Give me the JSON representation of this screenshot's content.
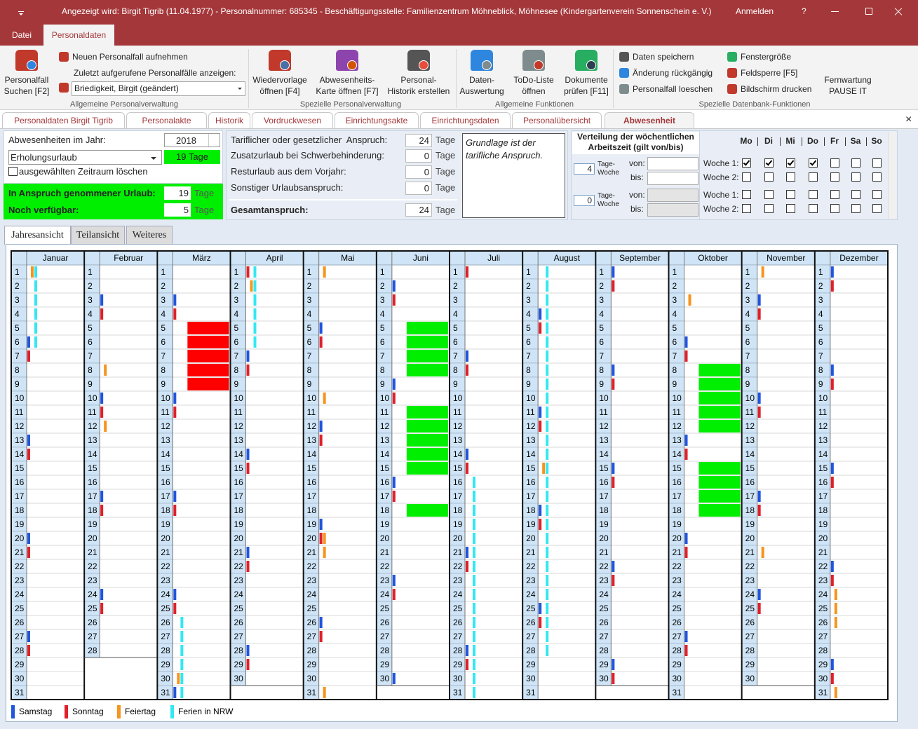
{
  "title_bar": {
    "title": "Angezeigt wird: Birgit Tigrib (11.04.1977) - Personalnummer: 685345 - Beschäftigungsstelle: Familienzentrum Möhneblick, Möhnesee (Kindergartenverein Sonnenschein e. V.)",
    "login": "Anmelden",
    "help": "?"
  },
  "menu": {
    "tabs": [
      "Datei",
      "Personaldaten"
    ],
    "active": 1
  },
  "ribbon": {
    "groups": [
      {
        "label": "Allgemeine Personalverwaltung",
        "buttons": [
          {
            "lines": [
              "Personalfall",
              "Suchen [F2]"
            ]
          }
        ],
        "items": [
          "Neuen Personalfall aufnehmen",
          "Zuletzt aufgerufene Personalfälle anzeigen:"
        ],
        "recent": "Briedigkeit, Birgit (geändert)"
      },
      {
        "label": "Spezielle Personalverwaltung",
        "buttons": [
          {
            "lines": [
              "Wiedervorlage",
              "öffnen [F4]"
            ]
          },
          {
            "lines": [
              "Abwesenheits-",
              "Karte öffnen [F7]"
            ]
          },
          {
            "lines": [
              "Personal-",
              "Historik erstellen"
            ]
          }
        ]
      },
      {
        "label": "Allgemeine Funktionen",
        "buttons": [
          {
            "lines": [
              "Daten-",
              "Auswertung"
            ]
          },
          {
            "lines": [
              "ToDo-Liste",
              "öffnen"
            ]
          },
          {
            "lines": [
              "Dokumente",
              "prüfen [F11]"
            ]
          }
        ]
      },
      {
        "label": "Spezielle Datenbank-Funktionen",
        "items": [
          "Daten speichern",
          "Änderung rückgängig",
          "Personalfall loeschen",
          "Fenstergröße",
          "Feldsperre [F5]",
          "Bildschirm drucken"
        ],
        "buttons": [
          {
            "lines": [
              "Fernwartung",
              "PAUSE IT"
            ]
          }
        ]
      }
    ]
  },
  "doc_tabs": {
    "tabs": [
      "Personaldaten Birgit Tigrib",
      "Personalakte",
      "Historik",
      "Vordruckwesen",
      "Einrichtungsakte",
      "Einrichtungsdaten",
      "Personalübersicht",
      "Abwesenheit"
    ],
    "active": 7,
    "close": "×"
  },
  "form": {
    "year_label": "Abwesenheiten im Jahr:",
    "year": 2018,
    "type": "Erholungsurlaub",
    "selected_total": "19 Tage",
    "delete_label": "ausgewählten Zeitraum löschen",
    "delete_checked": false,
    "taken_label": "In Anspruch genommener Urlaub:",
    "taken": 19,
    "available_label": "Noch verfügbar:",
    "available": 5,
    "unit": "Tage",
    "entitlements": [
      {
        "label": "Tariflicher oder gesetzlicher  Anspruch:",
        "value": 24
      },
      {
        "label": "Zusatzurlaub bei Schwerbehinderung:",
        "value": 0
      },
      {
        "label": "Resturlaub aus dem Vorjahr:",
        "value": 0
      },
      {
        "label": "Sonstiger Urlaubsanspruch:",
        "value": 0
      }
    ],
    "total_label": "Gesamtanspruch:",
    "total": 24,
    "note": "Grundlage ist der tarifliche Anspruch."
  },
  "worktime": {
    "title": "Verteilung der wöchentlichen Arbeitszeit (gilt von/bis)",
    "days": [
      "Mo",
      "Di",
      "Mi",
      "Do",
      "Fr",
      "Sa",
      "So"
    ],
    "days_label": "Tage-Woche",
    "from_label": "von:",
    "to_label": "bis:",
    "week_labels": [
      "Woche 1:",
      "Woche 2:"
    ],
    "blocks": [
      {
        "days_per_week": 4,
        "weeks": [
          [
            1,
            1,
            1,
            1,
            0,
            0,
            0
          ],
          [
            0,
            0,
            0,
            0,
            0,
            0,
            0
          ]
        ]
      },
      {
        "days_per_week": 0,
        "weeks": [
          [
            0,
            0,
            0,
            0,
            0,
            0,
            0
          ],
          [
            0,
            0,
            0,
            0,
            0,
            0,
            0
          ]
        ]
      }
    ]
  },
  "view_tabs": {
    "tabs": [
      "Jahresansicht",
      "Teilansicht",
      "Weiteres"
    ],
    "active": 0
  },
  "calendar": {
    "day_numbers": [
      1,
      2,
      3,
      4,
      5,
      6,
      7,
      8,
      9,
      10,
      11,
      12,
      13,
      14,
      15,
      16,
      17,
      18,
      19,
      20,
      21,
      22,
      23,
      24,
      25,
      26,
      27,
      28,
      29,
      30,
      31
    ],
    "legend": [
      {
        "label": "Samstag",
        "color": "#1f55e0"
      },
      {
        "label": "Sonntag",
        "color": "#e0202a"
      },
      {
        "label": "Feiertag",
        "color": "#f7941d"
      },
      {
        "label": "Ferien in NRW",
        "color": "#33e8f2"
      }
    ],
    "months": [
      {
        "name": "Januar",
        "days": 31,
        "holidays": [
          1
        ],
        "school_holidays": [
          [
            1,
            6
          ]
        ],
        "absence": [],
        "absence_color": "#00ee00"
      },
      {
        "name": "Februar",
        "days": 28,
        "holidays": [
          8,
          12
        ],
        "school_holidays": [],
        "absence": [],
        "absence_color": "#00ee00"
      },
      {
        "name": "März",
        "days": 31,
        "holidays": [
          30
        ],
        "school_holidays": [
          [
            26,
            31
          ]
        ],
        "absence": [
          [
            5,
            9
          ]
        ],
        "absence_color": "#ff0000"
      },
      {
        "name": "April",
        "days": 30,
        "holidays": [
          2
        ],
        "school_holidays": [
          [
            1,
            6
          ]
        ],
        "absence": [],
        "absence_color": "#00ee00"
      },
      {
        "name": "Mai",
        "days": 31,
        "holidays": [
          1,
          10,
          20,
          21,
          31
        ],
        "school_holidays": [],
        "absence": [],
        "absence_color": "#00ee00"
      },
      {
        "name": "Juni",
        "days": 30,
        "holidays": [],
        "school_holidays": [],
        "absence": [
          [
            5,
            8
          ],
          [
            11,
            15
          ],
          [
            18,
            18
          ]
        ],
        "absence_color": "#00ee00"
      },
      {
        "name": "Juli",
        "days": 31,
        "holidays": [],
        "school_holidays": [
          [
            16,
            31
          ]
        ],
        "absence": [],
        "absence_color": "#00ee00"
      },
      {
        "name": "August",
        "days": 31,
        "holidays": [
          15
        ],
        "school_holidays": [
          [
            1,
            28
          ]
        ],
        "absence": [],
        "absence_color": "#00ee00"
      },
      {
        "name": "September",
        "days": 30,
        "holidays": [],
        "school_holidays": [],
        "absence": [],
        "absence_color": "#00ee00"
      },
      {
        "name": "Oktober",
        "days": 31,
        "holidays": [
          3
        ],
        "school_holidays": [],
        "absence": [
          [
            8,
            12
          ],
          [
            15,
            18
          ]
        ],
        "absence_color": "#00ee00"
      },
      {
        "name": "November",
        "days": 30,
        "holidays": [
          1,
          21
        ],
        "school_holidays": [],
        "absence": [],
        "absence_color": "#00ee00"
      },
      {
        "name": "Dezember",
        "days": 31,
        "holidays": [
          24,
          25,
          26,
          31
        ],
        "school_holidays": [],
        "absence": [],
        "absence_color": "#00ee00"
      }
    ]
  }
}
